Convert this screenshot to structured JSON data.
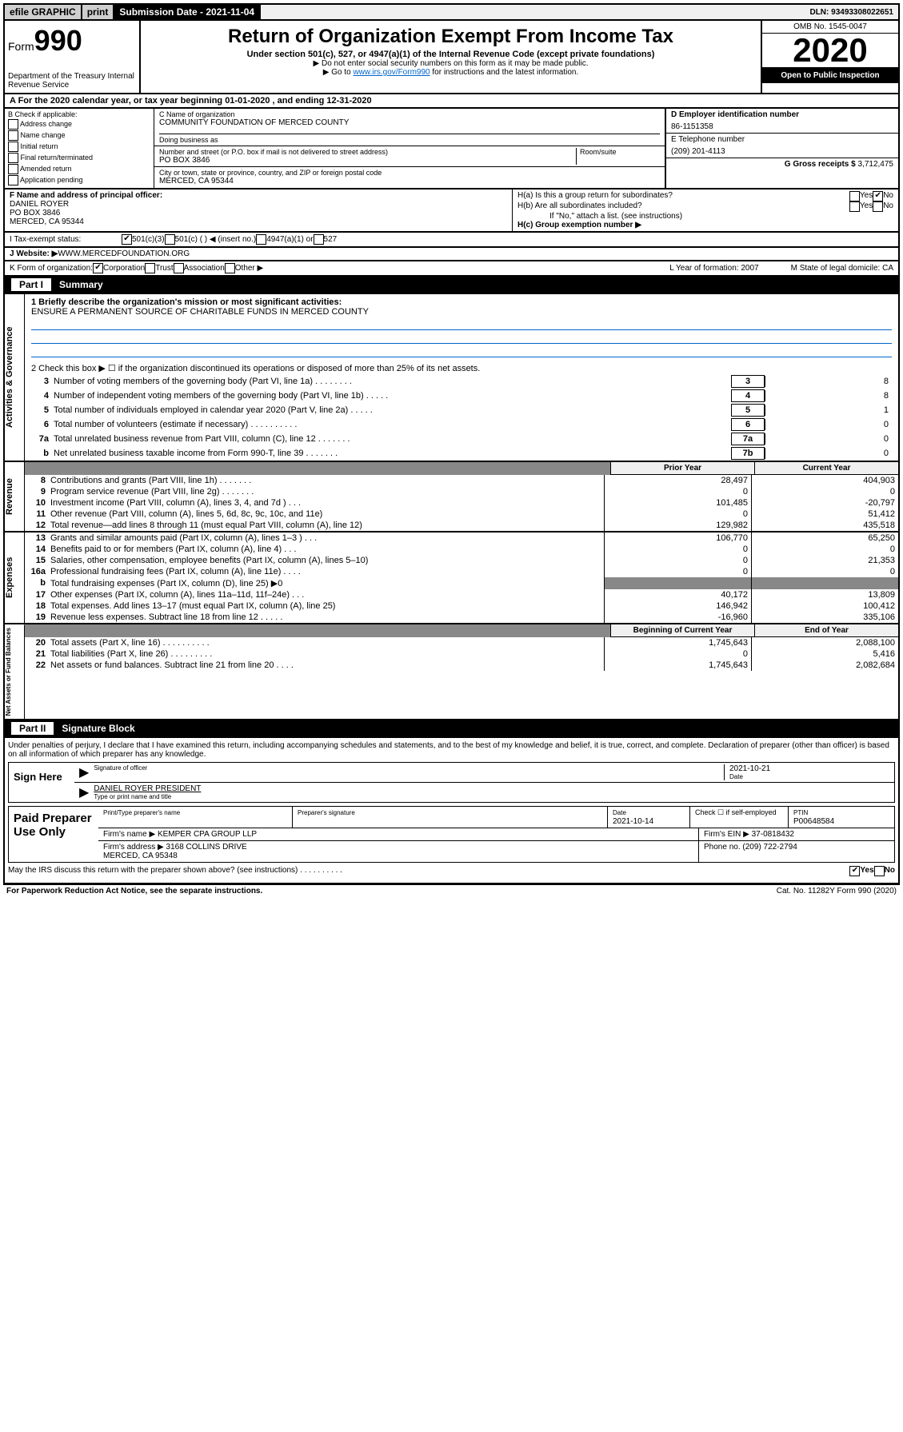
{
  "top": {
    "efile": "efile GRAPHIC",
    "print": "print",
    "submission": "Submission Date - 2021-11-04",
    "dln": "DLN: 93493308022651"
  },
  "header": {
    "form_prefix": "Form",
    "form_no": "990",
    "title": "Return of Organization Exempt From Income Tax",
    "sub1": "Under section 501(c), 527, or 4947(a)(1) of the Internal Revenue Code (except private foundations)",
    "sub2": "▶ Do not enter social security numbers on this form as it may be made public.",
    "sub3_pre": "▶ Go to ",
    "sub3_link": "www.irs.gov/Form990",
    "sub3_post": " for instructions and the latest information.",
    "dept": "Department of the Treasury\nInternal Revenue Service",
    "omb": "OMB No. 1545-0047",
    "year": "2020",
    "open": "Open to Public Inspection"
  },
  "row_a": {
    "text": "A For the 2020 calendar year, or tax year beginning 01-01-2020    , and ending 12-31-2020"
  },
  "col_b": {
    "label": "B Check if applicable:",
    "opts": [
      "Address change",
      "Name change",
      "Initial return",
      "Final return/terminated",
      "Amended return",
      "Application pending"
    ]
  },
  "col_c": {
    "c_label": "C Name of organization",
    "org": "COMMUNITY FOUNDATION OF MERCED COUNTY",
    "dba_label": "Doing business as",
    "dba": "",
    "addr_label": "Number and street (or P.O. box if mail is not delivered to street address)",
    "room_label": "Room/suite",
    "addr": "PO BOX 3846",
    "city_label": "City or town, state or province, country, and ZIP or foreign postal code",
    "city": "MERCED, CA  95344"
  },
  "col_d": {
    "d_label": "D Employer identification number",
    "ein": "86-1151358",
    "e_label": "E Telephone number",
    "phone": "(209) 201-4113",
    "g_label": "G Gross receipts $",
    "gross": "3,712,475"
  },
  "col_f": {
    "f_label": "F Name and address of principal officer:",
    "name": "DANIEL ROYER",
    "addr1": "PO BOX 3846",
    "addr2": "MERCED, CA  95344"
  },
  "col_h": {
    "ha": "H(a)  Is this a group return for subordinates?",
    "ha_no": "No",
    "hb": "H(b)  Are all subordinates included?",
    "hb_note": "If \"No,\" attach a list. (see instructions)",
    "hc": "H(c)  Group exemption number ▶"
  },
  "row_i": {
    "label": "I   Tax-exempt status:",
    "opt1": "501(c)(3)",
    "opt2": "501(c) (   ) ◀ (insert no.)",
    "opt3": "4947(a)(1) or",
    "opt4": "527"
  },
  "row_j": {
    "label": "J   Website: ▶",
    "url": "WWW.MERCEDFOUNDATION.ORG"
  },
  "row_k": {
    "label": "K Form of organization:",
    "opts": [
      "Corporation",
      "Trust",
      "Association",
      "Other ▶"
    ],
    "l": "L Year of formation: 2007",
    "m": "M State of legal domicile: CA"
  },
  "part1": {
    "part": "Part I",
    "title": "Summary"
  },
  "summary": {
    "gov_tab": "Activities & Governance",
    "rev_tab": "Revenue",
    "exp_tab": "Expenses",
    "na_tab": "Net Assets or Fund Balances",
    "line1_label": "1  Briefly describe the organization's mission or most significant activities:",
    "mission": "ENSURE A PERMANENT SOURCE OF CHARITABLE FUNDS IN MERCED COUNTY",
    "line2": "2   Check this box ▶ ☐  if the organization discontinued its operations or disposed of more than 25% of its net assets.",
    "rows_gov": [
      {
        "n": "3",
        "lbl": "Number of voting members of the governing body (Part VI, line 1a)  .   .   .   .   .   .   .   .",
        "box": "3",
        "val": "8"
      },
      {
        "n": "4",
        "lbl": "Number of independent voting members of the governing body (Part VI, line 1b)  .   .   .   .   .",
        "box": "4",
        "val": "8"
      },
      {
        "n": "5",
        "lbl": "Total number of individuals employed in calendar year 2020 (Part V, line 2a)  .   .   .   .   .",
        "box": "5",
        "val": "1"
      },
      {
        "n": "6",
        "lbl": "Total number of volunteers (estimate if necessary)  .   .   .   .   .   .   .   .   .   .",
        "box": "6",
        "val": "0"
      },
      {
        "n": "7a",
        "lbl": "Total unrelated business revenue from Part VIII, column (C), line 12  .   .   .   .   .   .   .",
        "box": "7a",
        "val": "0"
      },
      {
        "n": "b",
        "lbl": "Net unrelated business taxable income from Form 990-T, line 39  .   .   .   .   .   .   .",
        "box": "7b",
        "val": "0"
      }
    ],
    "col_prior": "Prior Year",
    "col_current": "Current Year",
    "rows_rev": [
      {
        "n": "8",
        "lbl": "Contributions and grants (Part VIII, line 1h)  .   .   .   .   .   .   .",
        "prior": "28,497",
        "cur": "404,903"
      },
      {
        "n": "9",
        "lbl": "Program service revenue (Part VIII, line 2g)  .   .   .   .   .   .   .",
        "prior": "0",
        "cur": "0"
      },
      {
        "n": "10",
        "lbl": "Investment income (Part VIII, column (A), lines 3, 4, and 7d )  .   .   .",
        "prior": "101,485",
        "cur": "-20,797"
      },
      {
        "n": "11",
        "lbl": "Other revenue (Part VIII, column (A), lines 5, 6d, 8c, 9c, 10c, and 11e)",
        "prior": "0",
        "cur": "51,412"
      },
      {
        "n": "12",
        "lbl": "Total revenue—add lines 8 through 11 (must equal Part VIII, column (A), line 12)",
        "prior": "129,982",
        "cur": "435,518"
      }
    ],
    "rows_exp": [
      {
        "n": "13",
        "lbl": "Grants and similar amounts paid (Part IX, column (A), lines 1–3 )  .   .   .",
        "prior": "106,770",
        "cur": "65,250"
      },
      {
        "n": "14",
        "lbl": "Benefits paid to or for members (Part IX, column (A), line 4)  .   .   .",
        "prior": "0",
        "cur": "0"
      },
      {
        "n": "15",
        "lbl": "Salaries, other compensation, employee benefits (Part IX, column (A), lines 5–10)",
        "prior": "0",
        "cur": "21,353"
      },
      {
        "n": "16a",
        "lbl": "Professional fundraising fees (Part IX, column (A), line 11e)  .   .   .   .",
        "prior": "0",
        "cur": "0"
      },
      {
        "n": "b",
        "lbl": "Total fundraising expenses (Part IX, column (D), line 25) ▶0",
        "prior": "",
        "cur": "",
        "shade": true
      },
      {
        "n": "17",
        "lbl": "Other expenses (Part IX, column (A), lines 11a–11d, 11f–24e)  .   .   .",
        "prior": "40,172",
        "cur": "13,809"
      },
      {
        "n": "18",
        "lbl": "Total expenses. Add lines 13–17 (must equal Part IX, column (A), line 25)",
        "prior": "146,942",
        "cur": "100,412"
      },
      {
        "n": "19",
        "lbl": "Revenue less expenses. Subtract line 18 from line 12  .   .   .   .   .",
        "prior": "-16,960",
        "cur": "335,106"
      }
    ],
    "col_begin": "Beginning of Current Year",
    "col_end": "End of Year",
    "rows_na": [
      {
        "n": "20",
        "lbl": "Total assets (Part X, line 16)  .   .   .   .   .   .   .   .   .   .",
        "prior": "1,745,643",
        "cur": "2,088,100"
      },
      {
        "n": "21",
        "lbl": "Total liabilities (Part X, line 26)  .   .   .   .   .   .   .   .   .",
        "prior": "0",
        "cur": "5,416"
      },
      {
        "n": "22",
        "lbl": "Net assets or fund balances. Subtract line 21 from line 20  .   .   .   .",
        "prior": "1,745,643",
        "cur": "2,082,684"
      }
    ]
  },
  "part2": {
    "part": "Part II",
    "title": "Signature Block"
  },
  "sig": {
    "perjury": "Under penalties of perjury, I declare that I have examined this return, including accompanying schedules and statements, and to the best of my knowledge and belief, it is true, correct, and complete. Declaration of preparer (other than officer) is based on all information of which preparer has any knowledge.",
    "sign_here": "Sign Here",
    "sig_officer_label": "Signature of officer",
    "sig_date": "2021-10-21",
    "date_label": "Date",
    "name_title": "DANIEL ROYER  PRESIDENT",
    "name_title_label": "Type or print name and title"
  },
  "paid": {
    "label": "Paid Preparer Use Only",
    "h1": "Print/Type preparer's name",
    "h2": "Preparer's signature",
    "h3": "Date",
    "h4_check": "Check ☐ if self-employed",
    "h5": "PTIN",
    "prep_date": "2021-10-14",
    "ptin": "P00648584",
    "firm_name_label": "Firm's name     ▶",
    "firm_name": "KEMPER CPA GROUP LLP",
    "firm_ein_label": "Firm's EIN ▶",
    "firm_ein": "37-0818432",
    "firm_addr_label": "Firm's address ▶",
    "firm_addr1": "3168 COLLINS DRIVE",
    "firm_addr2": "MERCED, CA  95348",
    "phone_label": "Phone no.",
    "phone": "(209) 722-2794"
  },
  "footer": {
    "discuss": "May the IRS discuss this return with the preparer shown above? (see instructions)  .   .   .   .   .   .   .   .   .   .",
    "yes": "Yes",
    "no": "No",
    "pra": "For Paperwork Reduction Act Notice, see the separate instructions.",
    "cat": "Cat. No. 11282Y",
    "form": "Form 990 (2020)"
  }
}
